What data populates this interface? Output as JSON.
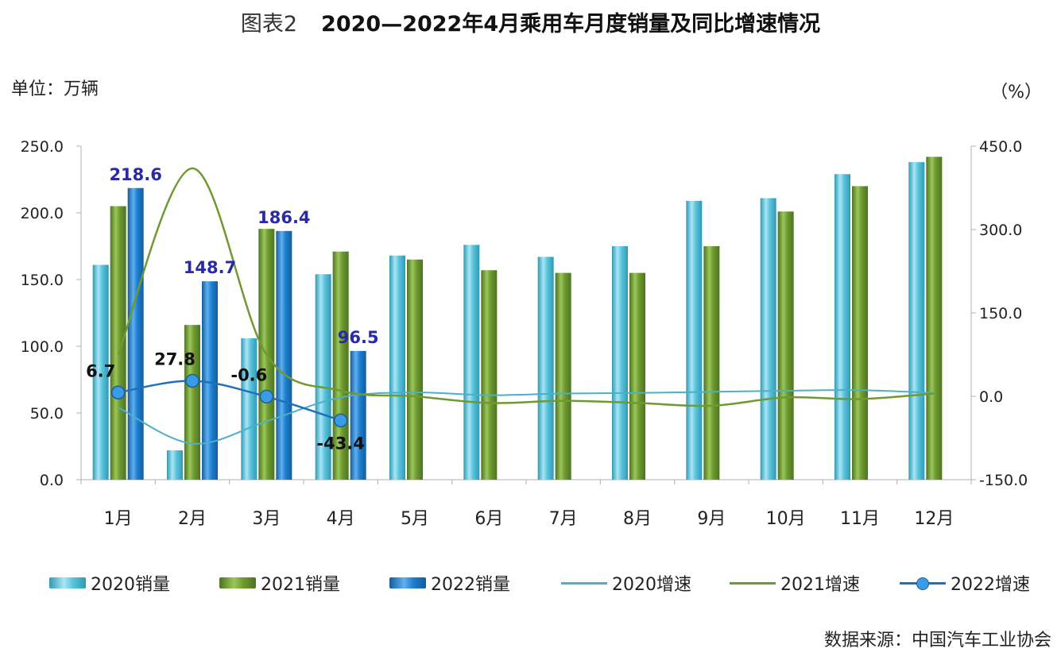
{
  "title": {
    "prefix": "图表2",
    "main": "2020—2022年4月乘用车月度销量及同比增速情况"
  },
  "unit_left": "单位：万辆",
  "unit_right": "（%）",
  "source": "数据来源：中国汽车工业协会",
  "colors": {
    "bar2020": "#5bc3dc",
    "bar2021": "#6e9a31",
    "bar2022": "#1f7fcf",
    "line2020": "#4bb0c8",
    "line2021": "#6e9a31",
    "line2022": "#1f6fbf",
    "label_blue": "#2a2aa8"
  },
  "chart_data": {
    "type": "bar",
    "categories": [
      "1月",
      "2月",
      "3月",
      "4月",
      "5月",
      "6月",
      "7月",
      "8月",
      "9月",
      "10月",
      "11月",
      "12月"
    ],
    "y_left": {
      "min": 0,
      "max": 250,
      "ticks": [
        "0.0",
        "50.0",
        "100.0",
        "150.0",
        "200.0",
        "250.0"
      ]
    },
    "y_right": {
      "min": -150,
      "max": 450,
      "ticks": [
        "-150.0",
        "0.0",
        "150.0",
        "300.0",
        "450.0"
      ]
    },
    "bar_series": [
      {
        "name": "2020销量",
        "values": [
          161,
          22,
          106,
          154,
          168,
          176,
          167,
          175,
          209,
          211,
          229,
          238
        ]
      },
      {
        "name": "2021销量",
        "values": [
          205,
          116,
          188,
          171,
          165,
          157,
          155,
          155,
          175,
          201,
          220,
          242
        ]
      },
      {
        "name": "2022销量",
        "values": [
          218.6,
          148.7,
          186.4,
          96.5
        ],
        "labels": [
          "218.6",
          "148.7",
          "186.4",
          "96.5"
        ]
      }
    ],
    "line_series": [
      {
        "name": "2020增速",
        "values": [
          -20,
          -85,
          -45,
          -2,
          7,
          2,
          5,
          6,
          8,
          10,
          11,
          6
        ]
      },
      {
        "name": "2021增速",
        "values": [
          75,
          410,
          75,
          10,
          0,
          -12,
          -8,
          -12,
          -17,
          -2,
          -5,
          5
        ]
      },
      {
        "name": "2022增速",
        "values": [
          6.7,
          27.8,
          -0.6,
          -43.4
        ],
        "labels": [
          "6.7",
          "27.8",
          "-0.6",
          "-43.4"
        ]
      }
    ]
  }
}
